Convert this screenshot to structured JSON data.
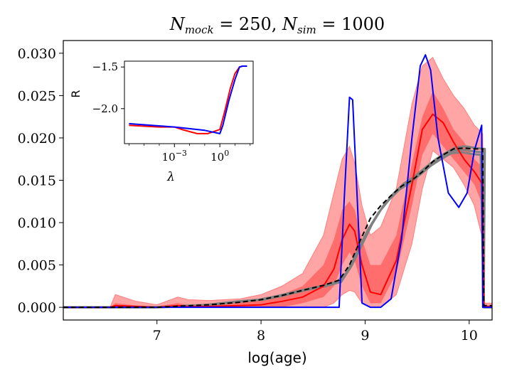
{
  "chart_data": [
    {
      "type": "line",
      "title": "N_mock = 250, N_sim = 1000",
      "title_parts": {
        "n1": "N",
        "s1": "mock",
        "eq1": " = 250, ",
        "n2": "N",
        "s2": "sim",
        "eq2": " = 1000"
      },
      "xlabel": "log(age)",
      "ylabel": "",
      "xlim": [
        6.1,
        10.22
      ],
      "ylim": [
        -0.0015,
        0.0315
      ],
      "xticks": [
        7,
        8,
        9,
        10
      ],
      "xtick_labels": [
        "7",
        "8",
        "9",
        "10"
      ],
      "yticks": [
        0.0,
        0.005,
        0.01,
        0.015,
        0.02,
        0.025,
        0.03
      ],
      "ytick_labels": [
        "0.000",
        "0.005",
        "0.010",
        "0.015",
        "0.020",
        "0.025",
        "0.030"
      ],
      "colors": {
        "band_outer": "#ff7f7f",
        "band_inner": "#ff4040",
        "median": "#ff0000",
        "truth_blue": "#0000ff",
        "gray": "#808080",
        "dashed": "#000000"
      },
      "series": [
        {
          "name": "outer-band-upper",
          "x": [
            6.1,
            6.55,
            6.6,
            6.8,
            7.0,
            7.2,
            7.3,
            7.5,
            7.8,
            8.0,
            8.2,
            8.4,
            8.6,
            8.7,
            8.78,
            8.85,
            8.9,
            8.97,
            9.05,
            9.15,
            9.3,
            9.45,
            9.55,
            9.65,
            9.75,
            9.85,
            9.95,
            10.05,
            10.13,
            10.14,
            10.22
          ],
          "y": [
            0,
            0,
            0.0015,
            0.0007,
            0.0003,
            0.0012,
            0.0009,
            0.0008,
            0.001,
            0.0015,
            0.0025,
            0.004,
            0.0085,
            0.0135,
            0.0175,
            0.019,
            0.017,
            0.012,
            0.0085,
            0.0095,
            0.014,
            0.024,
            0.0285,
            0.0295,
            0.027,
            0.025,
            0.0235,
            0.0215,
            0.0205,
            0.0005,
            0.0005
          ]
        },
        {
          "name": "outer-band-lower",
          "x": [
            6.1,
            6.55,
            6.6,
            6.8,
            7.0,
            7.2,
            7.3,
            7.5,
            7.8,
            8.0,
            8.2,
            8.4,
            8.6,
            8.7,
            8.78,
            8.85,
            8.9,
            8.97,
            9.05,
            9.15,
            9.3,
            9.45,
            9.55,
            9.65,
            9.75,
            9.85,
            9.95,
            10.05,
            10.13,
            10.14,
            10.22
          ],
          "y": [
            0,
            0,
            0,
            0,
            0,
            0,
            0,
            0,
            0,
            0,
            0,
            0,
            0,
            0.0005,
            0.0015,
            0.002,
            0.0018,
            0.0005,
            0,
            0,
            0.0015,
            0.0075,
            0.014,
            0.0185,
            0.0175,
            0.0165,
            0.0145,
            0.012,
            0.008,
            0,
            0
          ]
        },
        {
          "name": "inner-band-upper",
          "x": [
            6.1,
            6.55,
            6.6,
            6.8,
            7.0,
            7.2,
            7.3,
            7.5,
            7.8,
            8.0,
            8.2,
            8.4,
            8.6,
            8.7,
            8.78,
            8.85,
            8.9,
            8.97,
            9.05,
            9.15,
            9.3,
            9.45,
            9.55,
            9.65,
            9.75,
            9.85,
            9.95,
            10.05,
            10.13,
            10.14,
            10.22
          ],
          "y": [
            0,
            0,
            0.0005,
            0.0002,
            0.0001,
            0.0005,
            0.0003,
            0.0003,
            0.0006,
            0.0009,
            0.0015,
            0.0025,
            0.005,
            0.008,
            0.0115,
            0.0125,
            0.0115,
            0.008,
            0.005,
            0.005,
            0.0085,
            0.017,
            0.0225,
            0.0255,
            0.0235,
            0.021,
            0.0195,
            0.0175,
            0.0165,
            0.0002,
            0.0002
          ]
        },
        {
          "name": "inner-band-lower",
          "x": [
            6.1,
            6.55,
            6.6,
            6.8,
            7.0,
            7.2,
            7.3,
            7.5,
            7.8,
            8.0,
            8.2,
            8.4,
            8.6,
            8.7,
            8.78,
            8.85,
            8.9,
            8.97,
            9.05,
            9.15,
            9.3,
            9.45,
            9.55,
            9.65,
            9.75,
            9.85,
            9.95,
            10.05,
            10.13,
            10.14,
            10.22
          ],
          "y": [
            0,
            0,
            0,
            0,
            0,
            0,
            0,
            0,
            0,
            0,
            0,
            0.0005,
            0.0012,
            0.0025,
            0.005,
            0.0065,
            0.0055,
            0.0025,
            0.0005,
            0.0005,
            0.004,
            0.012,
            0.018,
            0.0205,
            0.019,
            0.0175,
            0.016,
            0.0145,
            0.012,
            0,
            0
          ]
        },
        {
          "name": "median",
          "x": [
            6.1,
            6.55,
            6.6,
            6.8,
            7.0,
            7.2,
            7.3,
            7.5,
            7.8,
            8.0,
            8.2,
            8.4,
            8.6,
            8.7,
            8.78,
            8.85,
            8.9,
            8.97,
            9.05,
            9.15,
            9.3,
            9.45,
            9.55,
            9.65,
            9.75,
            9.85,
            9.95,
            10.05,
            10.13,
            10.14,
            10.22
          ],
          "y": [
            0,
            0,
            0.0002,
            0.0001,
            0,
            0.0002,
            0.0001,
            0.0001,
            0.0002,
            0.0003,
            0.0007,
            0.0012,
            0.0025,
            0.0045,
            0.008,
            0.0098,
            0.009,
            0.005,
            0.0018,
            0.0015,
            0.0055,
            0.0145,
            0.021,
            0.0228,
            0.0218,
            0.0195,
            0.0175,
            0.016,
            0.0145,
            0.0001,
            0.0001
          ]
        },
        {
          "name": "truth-blue",
          "x": [
            6.1,
            7.0,
            8.0,
            8.7,
            8.75,
            8.8,
            8.85,
            8.88,
            8.92,
            8.97,
            9.05,
            9.15,
            9.25,
            9.35,
            9.45,
            9.53,
            9.58,
            9.63,
            9.7,
            9.8,
            9.9,
            9.98,
            10.05,
            10.12,
            10.13,
            10.22
          ],
          "y": [
            0,
            0,
            0,
            0,
            0,
            0.013,
            0.0248,
            0.0245,
            0.014,
            0.0005,
            0,
            0,
            0.001,
            0.008,
            0.02,
            0.0285,
            0.0298,
            0.028,
            0.02,
            0.0135,
            0.0118,
            0.0135,
            0.0185,
            0.0215,
            0,
            0
          ]
        },
        {
          "name": "gray-lines",
          "x": [
            6.1,
            7.0,
            7.5,
            7.8,
            8.0,
            8.2,
            8.4,
            8.6,
            8.75,
            8.85,
            8.95,
            9.05,
            9.15,
            9.25,
            9.35,
            9.45,
            9.55,
            9.65,
            9.75,
            9.85,
            9.95,
            10.05,
            10.13,
            10.14,
            10.22
          ],
          "y": [
            0,
            0,
            0.0003,
            0.0007,
            0.0009,
            0.0014,
            0.002,
            0.0025,
            0.003,
            0.0045,
            0.007,
            0.0095,
            0.0115,
            0.013,
            0.0142,
            0.015,
            0.016,
            0.017,
            0.0178,
            0.0185,
            0.0186,
            0.0184,
            0.0183,
            0,
            0
          ]
        },
        {
          "name": "dashed-black",
          "x": [
            6.1,
            7.0,
            7.5,
            7.8,
            8.0,
            8.2,
            8.4,
            8.6,
            8.75,
            8.85,
            8.95,
            9.05,
            9.15,
            9.25,
            9.35,
            9.45,
            9.55,
            9.65,
            9.75,
            9.85,
            9.95,
            10.05,
            10.13,
            10.14,
            10.22
          ],
          "y": [
            0,
            0,
            0.0003,
            0.0006,
            0.0009,
            0.0014,
            0.002,
            0.0026,
            0.0032,
            0.005,
            0.0078,
            0.0105,
            0.012,
            0.0132,
            0.0143,
            0.015,
            0.016,
            0.0172,
            0.018,
            0.0187,
            0.0188,
            0.0187,
            0.0187,
            0.0002,
            0.0002
          ]
        }
      ]
    },
    {
      "type": "line",
      "title": "",
      "xlabel": "λ",
      "ylabel": "R",
      "xscale": "log",
      "xlim_log10": [
        -6.3,
        2.2
      ],
      "ylim": [
        -2.42,
        -1.43
      ],
      "xticks_log10": [
        -3,
        0
      ],
      "xtick_labels": [
        {
          "base": "10",
          "exp": "−3"
        },
        {
          "base": "10",
          "exp": "0"
        }
      ],
      "yticks": [
        -2.0,
        -1.5
      ],
      "ytick_labels": [
        "−2.0",
        "−1.5"
      ],
      "series": [
        {
          "name": "inset-red",
          "x_log10": [
            -6.0,
            -4.0,
            -3.0,
            -2.5,
            -1.5,
            -0.8,
            0.0,
            0.3,
            0.7,
            1.0,
            1.3,
            1.5,
            1.8
          ],
          "y": [
            -2.2,
            -2.22,
            -2.22,
            -2.25,
            -2.3,
            -2.3,
            -2.25,
            -2.05,
            -1.75,
            -1.58,
            -1.5,
            -1.49,
            -1.49
          ]
        },
        {
          "name": "inset-blue",
          "x_log10": [
            -6.0,
            -3.0,
            -1.0,
            0.0,
            0.2,
            0.6,
            1.0,
            1.3,
            1.5,
            1.8
          ],
          "y": [
            -2.18,
            -2.22,
            -2.26,
            -2.3,
            -2.2,
            -1.9,
            -1.65,
            -1.5,
            -1.49,
            -1.49
          ]
        }
      ]
    }
  ]
}
